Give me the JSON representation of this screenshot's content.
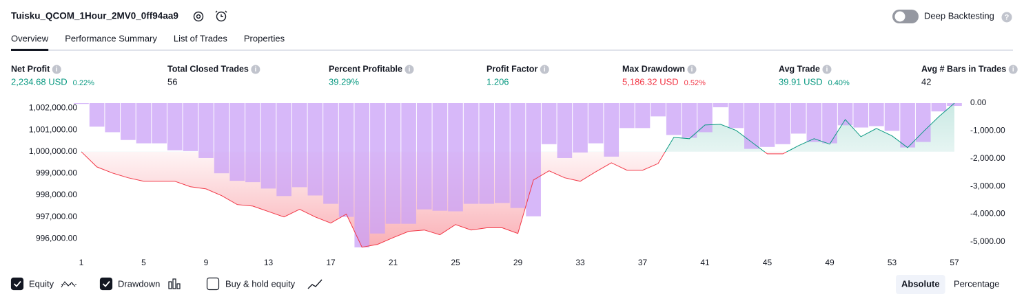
{
  "header": {
    "title": "Tuisku_QCOM_1Hour_2MV0_0ff94aa9",
    "deep_backtesting": "Deep Backtesting",
    "deep_backtesting_on": false
  },
  "tabs": {
    "items": [
      "Overview",
      "Performance Summary",
      "List of Trades",
      "Properties"
    ],
    "active": 0
  },
  "metrics": [
    {
      "label": "Net Profit",
      "value": "2,234.68 USD",
      "percent": "0.22%",
      "color": "#089981"
    },
    {
      "label": "Total Closed Trades",
      "value": "56",
      "color": "#131722"
    },
    {
      "label": "Percent Profitable",
      "value": "39.29%",
      "color": "#089981"
    },
    {
      "label": "Profit Factor",
      "value": "1.206",
      "color": "#089981"
    },
    {
      "label": "Max Drawdown",
      "value": "5,186.32 USD",
      "percent": "0.52%",
      "color": "#f23645"
    },
    {
      "label": "Avg Trade",
      "value": "39.91 USD",
      "percent": "0.40%",
      "color": "#089981"
    },
    {
      "label": "Avg # Bars in Trades",
      "value": "42",
      "color": "#131722"
    }
  ],
  "chart_data": {
    "type": "line",
    "x": [
      1,
      2,
      3,
      4,
      5,
      6,
      7,
      8,
      9,
      10,
      11,
      12,
      13,
      14,
      15,
      16,
      17,
      18,
      19,
      20,
      21,
      22,
      23,
      24,
      25,
      26,
      27,
      28,
      29,
      30,
      31,
      32,
      33,
      34,
      35,
      36,
      37,
      38,
      39,
      40,
      41,
      42,
      43,
      44,
      45,
      46,
      47,
      48,
      49,
      50,
      51,
      52,
      53,
      54,
      55,
      56,
      57
    ],
    "xlim": [
      1,
      57
    ],
    "xticks": [
      1,
      5,
      9,
      13,
      17,
      21,
      25,
      29,
      33,
      37,
      41,
      45,
      49,
      53,
      57
    ],
    "baseline": 1000000,
    "series": [
      {
        "name": "Equity",
        "checked": true,
        "color": "#089981",
        "negative_color": "#f23645",
        "values": [
          1000000,
          999300,
          999020,
          998800,
          998640,
          998640,
          998640,
          998390,
          998290,
          997980,
          997570,
          997500,
          997250,
          997000,
          997350,
          997000,
          996720,
          997130,
          995610,
          995740,
          996050,
          996340,
          996400,
          996180,
          996650,
          996400,
          996500,
          996500,
          996240,
          998700,
          999120,
          998800,
          998640,
          999080,
          999490,
          999150,
          999150,
          999460,
          1000660,
          1000600,
          1001230,
          1001260,
          1000980,
          1000440,
          999900,
          999900,
          1000280,
          1000600,
          1000350,
          1001480,
          1000690,
          1001070,
          1000730,
          1000190,
          1000920,
          1001610,
          1002234.68
        ]
      },
      {
        "name": "Drawdown",
        "checked": true,
        "type": "bar",
        "axis": "y2",
        "color": "#c9a0f7",
        "values": [
          -30,
          -850,
          -1050,
          -1330,
          -1450,
          -1450,
          -1700,
          -1730,
          -1980,
          -2530,
          -2800,
          -2850,
          -3080,
          -3350,
          -3030,
          -3330,
          -3630,
          -4100,
          -5200,
          -4700,
          -4350,
          -4350,
          -3830,
          -3880,
          -3900,
          -3630,
          -3630,
          -3600,
          -3780,
          -4080,
          -1480,
          -1980,
          -1780,
          -1450,
          -1930,
          -900,
          -900,
          -480,
          -1150,
          -1250,
          -1050,
          -150,
          -900,
          -1650,
          -1580,
          -1480,
          -1100,
          -1400,
          -1450,
          -800,
          -880,
          -830,
          -1000,
          -1600,
          -1400,
          -300,
          -100
        ]
      },
      {
        "name": "Buy & hold equity",
        "checked": false
      }
    ],
    "ylim": [
      995600,
      1002300
    ],
    "yticks": [
      {
        "value": 996000,
        "label": "996,000.00"
      },
      {
        "value": 997000,
        "label": "997,000.00"
      },
      {
        "value": 998000,
        "label": "998,000.00"
      },
      {
        "value": 999000,
        "label": "999,000.00"
      },
      {
        "value": 1000000,
        "label": "1,000,000.00"
      },
      {
        "value": 1001000,
        "label": "1,001,000.00"
      },
      {
        "value": 1002000,
        "label": "1,002,000.00"
      }
    ],
    "y2lim": [
      -5200,
      0
    ],
    "y2ticks": [
      {
        "value": 0,
        "label": "0.00"
      },
      {
        "value": -1000,
        "label": "-1,000.00"
      },
      {
        "value": -2000,
        "label": "-2,000.00"
      },
      {
        "value": -3000,
        "label": "-3,000.00"
      },
      {
        "value": -4000,
        "label": "-4,000.00"
      },
      {
        "value": -5000,
        "label": "-5,000.00"
      }
    ]
  },
  "scale_modes": [
    "Absolute",
    "Percentage"
  ],
  "scale_mode": 0
}
